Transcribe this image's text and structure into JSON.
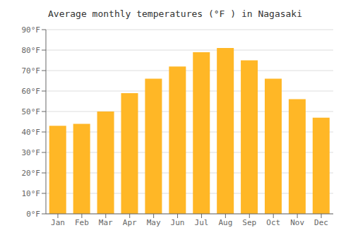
{
  "chart_data": {
    "type": "bar",
    "title": "Average monthly temperatures (°F ) in Nagasaki",
    "categories": [
      "Jan",
      "Feb",
      "Mar",
      "Apr",
      "May",
      "Jun",
      "Jul",
      "Aug",
      "Sep",
      "Oct",
      "Nov",
      "Dec"
    ],
    "values": [
      43,
      44,
      50,
      59,
      66,
      72,
      79,
      81,
      75,
      66,
      56,
      47
    ],
    "color": "#FFB726",
    "ylim": [
      0,
      90
    ],
    "yticks": [
      {
        "value": 0,
        "label": "0°F"
      },
      {
        "value": 10,
        "label": "10°F"
      },
      {
        "value": 20,
        "label": "20°F"
      },
      {
        "value": 30,
        "label": "30°F"
      },
      {
        "value": 40,
        "label": "40°F"
      },
      {
        "value": 50,
        "label": "50°F"
      },
      {
        "value": 60,
        "label": "60°F"
      },
      {
        "value": 70,
        "label": "70°F"
      },
      {
        "value": 80,
        "label": "80°F"
      },
      {
        "value": 90,
        "label": "90°F"
      }
    ],
    "grid": true
  }
}
